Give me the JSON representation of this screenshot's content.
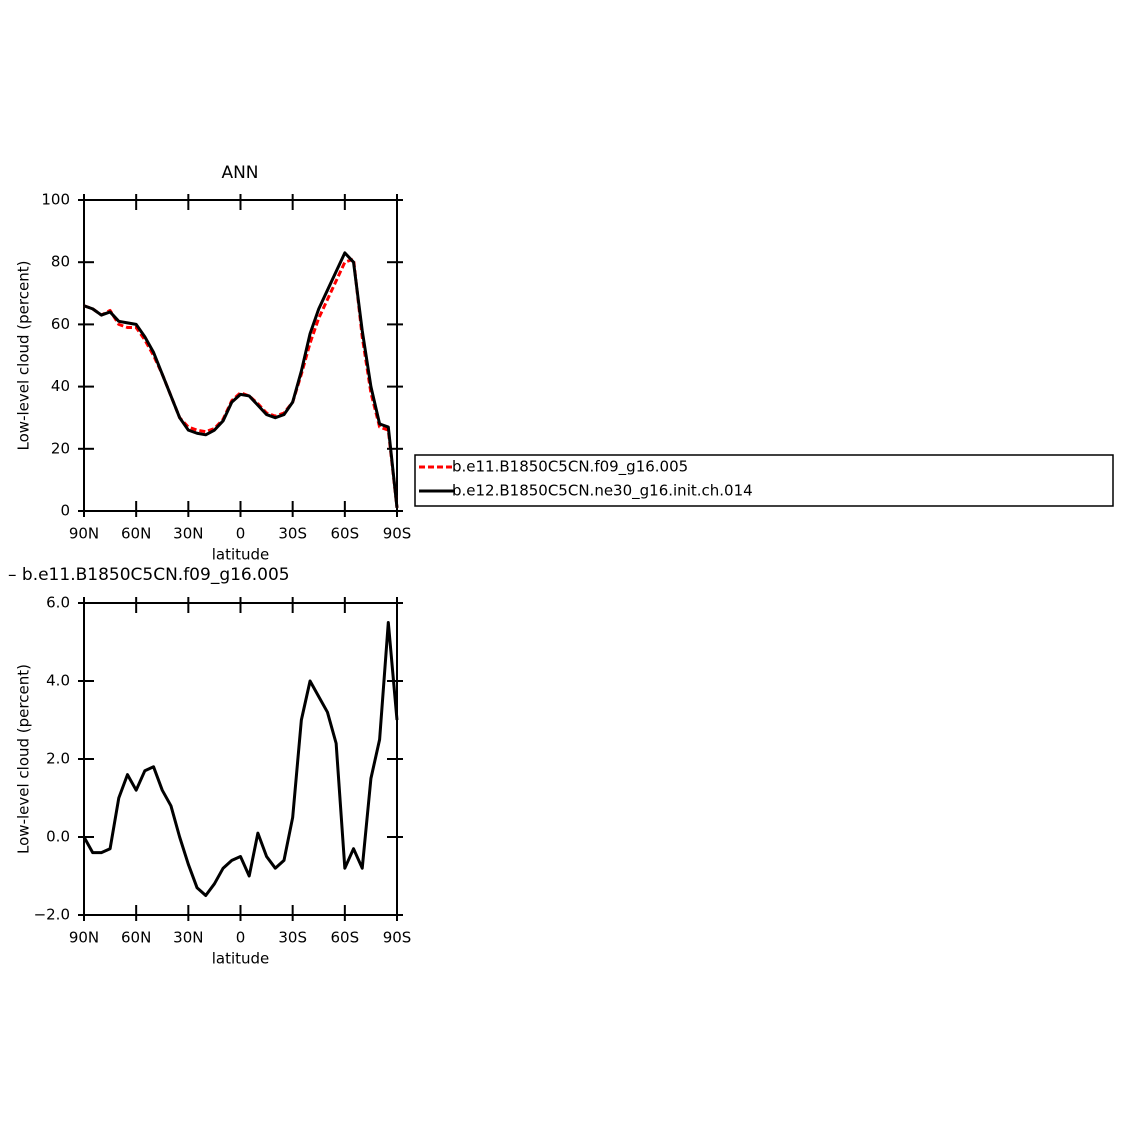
{
  "chart_data": [
    {
      "type": "line",
      "title": "ANN",
      "xlabel": "latitude",
      "ylabel": "Low-level cloud (percent)",
      "x": [
        90,
        85,
        80,
        75,
        70,
        65,
        60,
        55,
        50,
        45,
        40,
        35,
        30,
        25,
        20,
        15,
        10,
        5,
        0,
        -5,
        -10,
        -15,
        -20,
        -25,
        -30,
        -35,
        -40,
        -45,
        -50,
        -55,
        -60,
        -65,
        -70,
        -75,
        -80,
        -85,
        -90
      ],
      "series": [
        {
          "name": "b.e11.B1850C5CN.f09_g16.005",
          "color": "#ff0000",
          "line_style": "dashed",
          "values": [
            66,
            65,
            63,
            64.5,
            60,
            59,
            59,
            55,
            50,
            44,
            37,
            30,
            27,
            26,
            25.5,
            26.5,
            29.5,
            35.5,
            38,
            37,
            34.5,
            31.5,
            30.5,
            31.5,
            35,
            44,
            54,
            62,
            68,
            74,
            80,
            81,
            56,
            38,
            27,
            26,
            1
          ]
        },
        {
          "name": "b.e12.B1850C5CN.ne30_g16.init.ch.014",
          "color": "#000000",
          "line_style": "solid",
          "values": [
            66,
            65,
            63,
            64,
            61,
            60.5,
            60,
            56,
            51,
            44,
            37,
            30,
            26,
            25,
            24.5,
            26,
            29,
            35,
            37.5,
            37,
            34,
            31,
            30,
            31,
            35,
            45,
            57,
            65,
            71,
            77,
            83,
            80,
            58,
            40,
            28,
            27,
            1
          ]
        }
      ],
      "xlim": [
        90,
        -90
      ],
      "xticks": [
        {
          "value": 90,
          "label": "90N"
        },
        {
          "value": 60,
          "label": "60N"
        },
        {
          "value": 30,
          "label": "30N"
        },
        0,
        {
          "value": -30,
          "label": "30S"
        },
        {
          "value": -60,
          "label": "60S"
        },
        {
          "value": -90,
          "label": "90S"
        }
      ],
      "ylim": [
        0,
        100
      ],
      "yticks": [
        0,
        20,
        40,
        60,
        80,
        100
      ],
      "legend": "outside-right"
    },
    {
      "type": "line",
      "title": "– b.e11.B1850C5CN.f09_g16.005",
      "xlabel": "latitude",
      "ylabel": "Low-level cloud (percent)",
      "x": [
        90,
        85,
        80,
        75,
        70,
        65,
        60,
        55,
        50,
        45,
        40,
        35,
        30,
        25,
        20,
        15,
        10,
        5,
        0,
        -5,
        -10,
        -15,
        -20,
        -25,
        -30,
        -35,
        -40,
        -45,
        -50,
        -55,
        -60,
        -65,
        -70,
        -75,
        -80,
        -85,
        -90
      ],
      "series": [
        {
          "color": "#000000",
          "line_style": "solid",
          "values": [
            0,
            -0.4,
            -0.4,
            -0.3,
            1.0,
            1.6,
            1.2,
            1.7,
            1.8,
            1.2,
            0.8,
            0.0,
            -0.7,
            -1.3,
            -1.5,
            -1.2,
            -0.8,
            -0.6,
            -0.5,
            -1.0,
            0.1,
            -0.5,
            -0.8,
            -0.6,
            0.5,
            3.0,
            4.0,
            3.6,
            3.2,
            2.4,
            -0.8,
            -0.3,
            -0.8,
            1.5,
            2.5,
            5.5,
            3.0
          ]
        }
      ],
      "xlim": [
        90,
        -90
      ],
      "xticks": [
        {
          "value": 90,
          "label": "90N"
        },
        {
          "value": 60,
          "label": "60N"
        },
        {
          "value": 30,
          "label": "30N"
        },
        0,
        {
          "value": -30,
          "label": "30S"
        },
        {
          "value": -60,
          "label": "60S"
        },
        {
          "value": -90,
          "label": "90S"
        }
      ],
      "ylim": [
        -2,
        6
      ],
      "yticks": [
        {
          "value": -2,
          "label": "−2.0"
        },
        {
          "value": 0,
          "label": "0.0"
        },
        {
          "value": 2,
          "label": "2.0"
        },
        {
          "value": 4,
          "label": "4.0"
        },
        {
          "value": 6,
          "label": "6.0"
        }
      ]
    }
  ]
}
